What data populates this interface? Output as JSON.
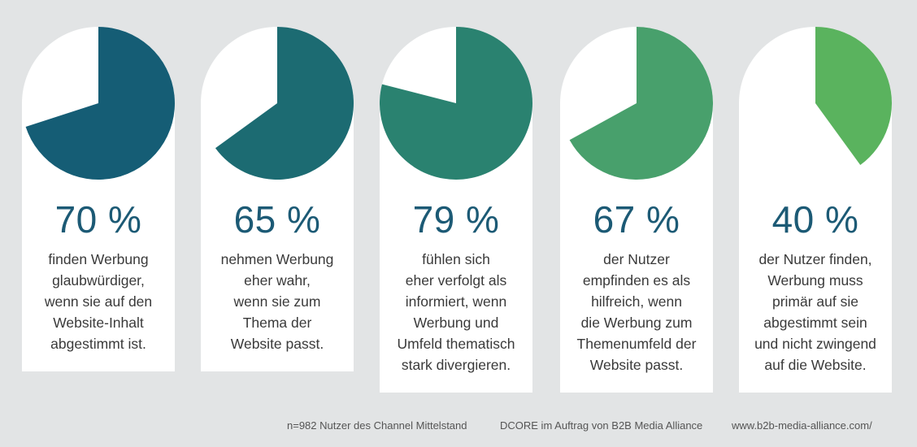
{
  "chart_data": [
    {
      "type": "pie",
      "value": 70,
      "label": "70 %",
      "color": "#155d75",
      "description": [
        "finden Werbung",
        "glaubwürdiger,",
        "wenn sie auf den",
        "Website-Inhalt",
        "abgestimmt ist."
      ]
    },
    {
      "type": "pie",
      "value": 65,
      "label": "65 %",
      "color": "#1c6b72",
      "description": [
        "nehmen Werbung",
        "eher wahr,",
        "wenn sie zum",
        "Thema der",
        "Website passt."
      ]
    },
    {
      "type": "pie",
      "value": 79,
      "label": "79 %",
      "color": "#2a8270",
      "description": [
        "fühlen sich",
        "eher verfolgt als",
        "informiert, wenn",
        "Werbung und",
        "Umfeld thematisch",
        "stark divergieren."
      ]
    },
    {
      "type": "pie",
      "value": 67,
      "label": "67 %",
      "color": "#48a06c",
      "description": [
        "der Nutzer",
        "empfinden es als",
        "hilfreich, wenn",
        "die Werbung zum",
        "Themenumfeld der",
        "Website passt."
      ]
    },
    {
      "type": "pie",
      "value": 40,
      "label": "40 %",
      "color": "#5ab35e",
      "description": [
        "der Nutzer finden,",
        "Werbung muss",
        "primär auf sie",
        "abgestimmt sein",
        "und nicht zwingend",
        "auf die Website."
      ]
    }
  ],
  "footer": {
    "sample": "n=982 Nutzer des Channel Mittelstand",
    "source": "DCORE im Auftrag von B2B Media Alliance",
    "url": "www.b2b-media-alliance.com/"
  }
}
